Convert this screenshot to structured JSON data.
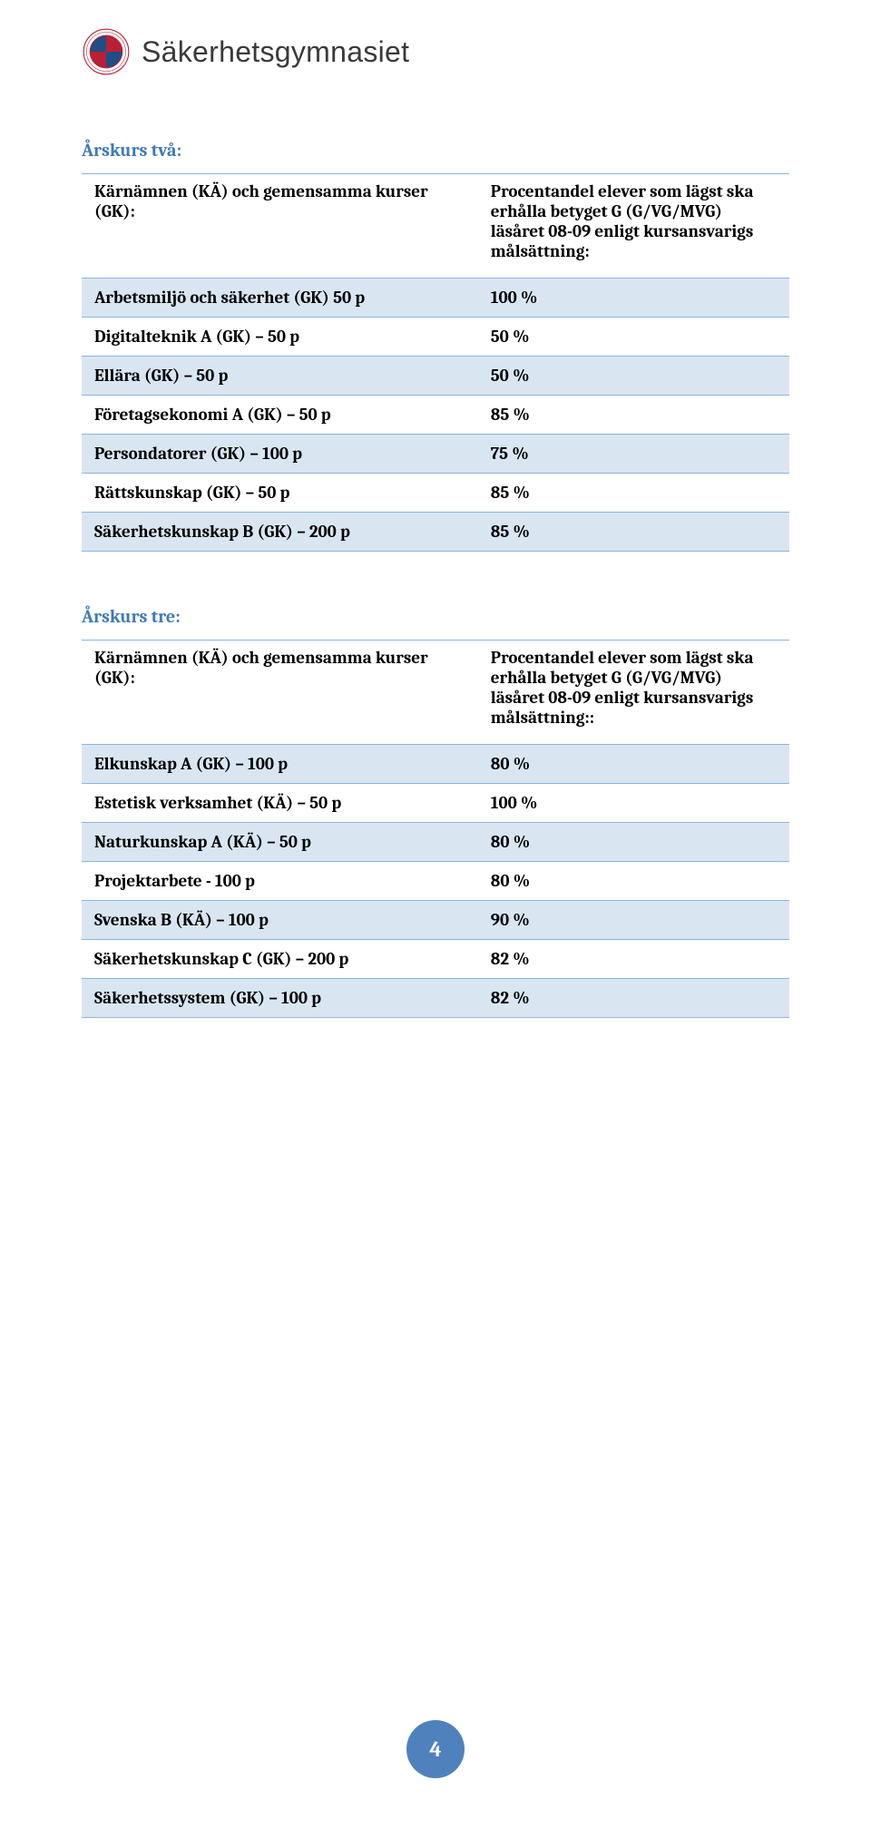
{
  "colors": {
    "brand_red": "#b92033",
    "brand_blue": "#1d4e86",
    "heading_blue": "#3e7ab6",
    "row_odd_bg": "#d9e6f2",
    "row_border": "#8ab5da",
    "page_badge": "#4f81bd",
    "logo_text": "#3a3a3a"
  },
  "logo": {
    "text": "Säkerhetsgymnasiet"
  },
  "year_two": {
    "heading": "Årskurs två:",
    "col_a": "Kärnämnen (KÄ) och gemensamma kurser (GK):",
    "col_b": "Procentandel elever som lägst ska erhålla betyget G (G/VG/MVG) läsåret 08-09 enligt kursansvarigs målsättning:",
    "rows": [
      {
        "label": "Arbetsmiljö och säkerhet (GK) 50 p",
        "value": "100 %"
      },
      {
        "label": "Digitalteknik A (GK) – 50 p",
        "value": "50 %"
      },
      {
        "label": "Ellära (GK) – 50 p",
        "value": "50 %"
      },
      {
        "label": "Företagsekonomi A (GK) – 50 p",
        "value": "85 %"
      },
      {
        "label": "Persondatorer  (GK) – 100 p",
        "value": "75 %"
      },
      {
        "label": "Rättskunskap (GK) – 50 p",
        "value": "85 %"
      },
      {
        "label": "Säkerhetskunskap B (GK) – 200 p",
        "value": "85 %"
      }
    ]
  },
  "year_three": {
    "heading": "Årskurs tre:",
    "col_a": "Kärnämnen (KÄ) och gemensamma kurser (GK):",
    "col_b": "Procentandel elever som lägst ska erhålla betyget G (G/VG/MVG) läsåret 08-09 enligt kursansvarigs målsättning::",
    "rows": [
      {
        "label": "Elkunskap A (GK) – 100 p",
        "value": "80 %"
      },
      {
        "label": "Estetisk verksamhet (KÄ) – 50 p",
        "value": "100 %"
      },
      {
        "label": "Naturkunskap A (KÄ) – 50 p",
        "value": "80 %"
      },
      {
        "label": "Projektarbete  - 100 p",
        "value": "80 %"
      },
      {
        "label": "Svenska B (KÄ) – 100 p",
        "value": "90 %"
      },
      {
        "label": "Säkerhetskunskap C (GK) – 200 p",
        "value": "82 %"
      },
      {
        "label": "Säkerhetssystem (GK) – 100 p",
        "value": "82 %"
      }
    ]
  },
  "page_number": "4"
}
